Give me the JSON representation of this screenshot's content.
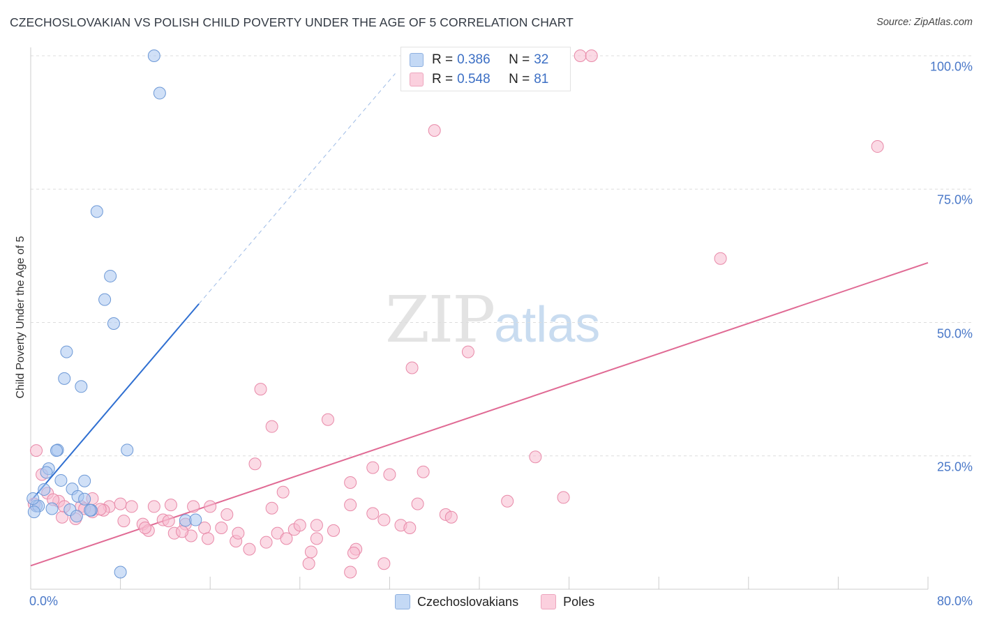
{
  "title": "CZECHOSLOVAKIAN VS POLISH CHILD POVERTY UNDER THE AGE OF 5 CORRELATION CHART",
  "source": "Source: ZipAtlas.com",
  "watermark": {
    "zip": "ZIP",
    "atlas": "atlas"
  },
  "legend": {
    "r_label": "R = ",
    "n_label": "N = ",
    "series": [
      {
        "name": "Czechoslovakians",
        "r": "0.386",
        "n": "32",
        "color": "#a9c7f0",
        "stroke": "#6c98d6"
      },
      {
        "name": "Poles",
        "r": "0.548",
        "n": "81",
        "color": "#f8bcd0",
        "stroke": "#e889a8"
      }
    ]
  },
  "chart_data": {
    "type": "scatter",
    "title": "CZECHOSLOVAKIAN VS POLISH CHILD POVERTY UNDER THE AGE OF 5 CORRELATION CHART",
    "xlabel": "",
    "ylabel": "Child Poverty Under the Age of 5",
    "xlim": [
      0,
      80
    ],
    "ylim": [
      0,
      100
    ],
    "x_tick_labels": [
      "0.0%",
      "80.0%"
    ],
    "y_tick_values": [
      25,
      50,
      75,
      100
    ],
    "y_tick_labels": [
      "25.0%",
      "50.0%",
      "75.0%",
      "100.0%"
    ],
    "grid": true,
    "series": [
      {
        "name": "Czechoslovakians",
        "color": "#a9c7f0",
        "line_color": "#2f6fd1",
        "trend": {
          "x0": 0.0,
          "y0": 16.5,
          "x1": 15.0,
          "y1": 53.5,
          "dashed_to_x": 32.5
        },
        "points": [
          [
            11.0,
            100.0
          ],
          [
            11.5,
            93.0
          ],
          [
            5.9,
            70.8
          ],
          [
            7.1,
            58.7
          ],
          [
            6.6,
            54.3
          ],
          [
            7.4,
            49.8
          ],
          [
            3.2,
            44.5
          ],
          [
            3.0,
            39.5
          ],
          [
            4.5,
            38.0
          ],
          [
            8.6,
            26.1
          ],
          [
            2.4,
            26.1
          ],
          [
            2.3,
            26.0
          ],
          [
            1.6,
            22.6
          ],
          [
            1.4,
            21.9
          ],
          [
            2.7,
            20.4
          ],
          [
            4.8,
            20.3
          ],
          [
            1.2,
            18.7
          ],
          [
            3.7,
            18.8
          ],
          [
            4.2,
            17.4
          ],
          [
            4.8,
            16.9
          ],
          [
            0.5,
            15.6
          ],
          [
            0.7,
            15.6
          ],
          [
            1.9,
            15.1
          ],
          [
            0.3,
            14.5
          ],
          [
            3.5,
            14.9
          ],
          [
            5.4,
            14.8
          ],
          [
            5.3,
            14.8
          ],
          [
            4.1,
            13.7
          ],
          [
            13.8,
            12.9
          ],
          [
            14.7,
            13.0
          ],
          [
            8.0,
            3.2
          ],
          [
            0.2,
            17.0
          ]
        ]
      },
      {
        "name": "Poles",
        "color": "#f8bcd0",
        "line_color": "#e06a94",
        "trend": {
          "x0": 0.0,
          "y0": 4.4,
          "x1": 80.0,
          "y1": 61.2
        },
        "points": [
          [
            49.0,
            100.0
          ],
          [
            50.0,
            100.0
          ],
          [
            36.0,
            86.0
          ],
          [
            75.5,
            83.0
          ],
          [
            61.5,
            62.0
          ],
          [
            39.0,
            44.5
          ],
          [
            34.0,
            41.5
          ],
          [
            20.5,
            37.5
          ],
          [
            26.5,
            31.8
          ],
          [
            21.5,
            30.5
          ],
          [
            0.5,
            26.0
          ],
          [
            45.0,
            24.8
          ],
          [
            20.0,
            23.5
          ],
          [
            30.5,
            22.8
          ],
          [
            35.0,
            22.0
          ],
          [
            32.0,
            21.5
          ],
          [
            28.5,
            20.0
          ],
          [
            1.0,
            21.5
          ],
          [
            22.5,
            18.2
          ],
          [
            1.5,
            18.0
          ],
          [
            47.5,
            17.2
          ],
          [
            5.5,
            17.0
          ],
          [
            2.5,
            16.5
          ],
          [
            42.5,
            16.5
          ],
          [
            3.0,
            15.5
          ],
          [
            7.0,
            15.5
          ],
          [
            8.0,
            16.0
          ],
          [
            9.0,
            15.5
          ],
          [
            4.5,
            15.5
          ],
          [
            11.0,
            15.5
          ],
          [
            12.5,
            15.8
          ],
          [
            14.5,
            15.5
          ],
          [
            16.0,
            15.5
          ],
          [
            17.5,
            14.0
          ],
          [
            21.5,
            15.2
          ],
          [
            28.5,
            15.8
          ],
          [
            30.5,
            14.2
          ],
          [
            34.5,
            16.0
          ],
          [
            37.0,
            14.0
          ],
          [
            37.5,
            13.5
          ],
          [
            2.8,
            13.5
          ],
          [
            4.0,
            13.2
          ],
          [
            5.5,
            14.5
          ],
          [
            6.5,
            14.8
          ],
          [
            8.3,
            12.8
          ],
          [
            10.0,
            12.2
          ],
          [
            11.8,
            13.0
          ],
          [
            12.3,
            12.8
          ],
          [
            13.8,
            12.2
          ],
          [
            15.5,
            11.5
          ],
          [
            17.0,
            11.5
          ],
          [
            18.3,
            9.0
          ],
          [
            19.5,
            7.5
          ],
          [
            22.0,
            10.5
          ],
          [
            23.5,
            11.2
          ],
          [
            24.0,
            12.0
          ],
          [
            25.5,
            12.0
          ],
          [
            27.0,
            11.0
          ],
          [
            31.5,
            13.0
          ],
          [
            33.0,
            12.0
          ],
          [
            33.8,
            11.5
          ],
          [
            10.5,
            11.0
          ],
          [
            12.8,
            10.5
          ],
          [
            14.3,
            10.0
          ],
          [
            15.8,
            9.5
          ],
          [
            18.5,
            10.5
          ],
          [
            22.8,
            9.5
          ],
          [
            25.5,
            9.5
          ],
          [
            29.0,
            7.5
          ],
          [
            28.8,
            6.8
          ],
          [
            21.0,
            8.8
          ],
          [
            25.0,
            7.0
          ],
          [
            24.8,
            4.8
          ],
          [
            31.5,
            4.8
          ],
          [
            28.5,
            3.2
          ],
          [
            10.2,
            11.5
          ],
          [
            13.5,
            10.8
          ],
          [
            6.2,
            15.0
          ],
          [
            4.8,
            15.1
          ],
          [
            0.3,
            16.0
          ],
          [
            2.0,
            16.8
          ]
        ]
      }
    ]
  }
}
